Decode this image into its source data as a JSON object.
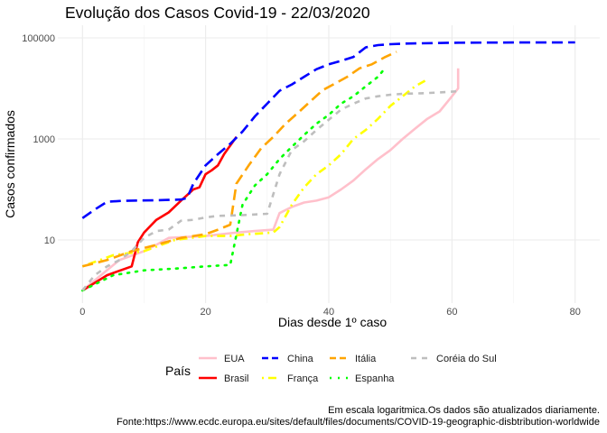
{
  "chart_data": {
    "type": "line",
    "title": "Evolução dos Casos Covid-19 -  22/03/2020",
    "xlabel": "Dias desde 1º caso",
    "ylabel": "Casos confirmados",
    "yscale": "log",
    "xlim": [
      -4,
      84
    ],
    "ylim_log10": [
      -0.25,
      5.25
    ],
    "x_ticks": [
      0,
      20,
      40,
      60,
      80
    ],
    "x_tick_labels": [
      "0",
      "20",
      "40",
      "60",
      "80"
    ],
    "y_ticks": [
      10,
      1000,
      100000
    ],
    "y_tick_labels": [
      "10",
      "1000",
      "100000"
    ],
    "grid": true,
    "legend": {
      "title": "País",
      "position": "bottom",
      "entries": [
        "EUA",
        "Brasil",
        "China",
        "França",
        "Itália",
        "Espanha",
        "Coréia do Sul"
      ]
    },
    "caption": [
      "Em escala logaritmica.Os dados são atualizados diariamente.",
      "Fonte:https://www.ecdc.europa.eu/sites/default/files/documents/COVID-19-geographic-disbtribution-worldwide"
    ],
    "series": [
      {
        "name": "EUA",
        "color": "#FFC0CB",
        "dash": "solid",
        "points": [
          [
            0,
            1
          ],
          [
            3,
            2
          ],
          [
            6,
            4
          ],
          [
            10,
            6
          ],
          [
            12,
            8
          ],
          [
            14,
            11
          ],
          [
            20,
            12
          ],
          [
            25,
            14
          ],
          [
            28,
            15
          ],
          [
            31,
            16
          ],
          [
            32,
            34
          ],
          [
            34,
            45
          ],
          [
            36,
            55
          ],
          [
            38,
            60
          ],
          [
            40,
            70
          ],
          [
            42,
            100
          ],
          [
            44,
            150
          ],
          [
            46,
            250
          ],
          [
            48,
            400
          ],
          [
            50,
            600
          ],
          [
            52,
            1000
          ],
          [
            54,
            1600
          ],
          [
            56,
            2500
          ],
          [
            58,
            3500
          ],
          [
            60,
            7000
          ],
          [
            61,
            10000
          ],
          [
            61,
            12000
          ],
          [
            61,
            25000
          ]
        ]
      },
      {
        "name": "Brasil",
        "color": "#FF0000",
        "dash": "solid",
        "points": [
          [
            0,
            1
          ],
          [
            4,
            2
          ],
          [
            8,
            3
          ],
          [
            9,
            9
          ],
          [
            10,
            14
          ],
          [
            12,
            25
          ],
          [
            14,
            35
          ],
          [
            16,
            60
          ],
          [
            18,
            100
          ],
          [
            19,
            110
          ],
          [
            20,
            200
          ],
          [
            21,
            240
          ],
          [
            22,
            300
          ],
          [
            23,
            500
          ],
          [
            25,
            1100
          ]
        ]
      },
      {
        "name": "China",
        "color": "#0000FF",
        "dash": "long",
        "points": [
          [
            0,
            27
          ],
          [
            2,
            40
          ],
          [
            4,
            57
          ],
          [
            6,
            59
          ],
          [
            8,
            60
          ],
          [
            12,
            61
          ],
          [
            14,
            62
          ],
          [
            16,
            63
          ],
          [
            17,
            68
          ],
          [
            18,
            129
          ],
          [
            20,
            300
          ],
          [
            22,
            500
          ],
          [
            24,
            800
          ],
          [
            26,
            1400
          ],
          [
            28,
            2800
          ],
          [
            30,
            5000
          ],
          [
            32,
            9000
          ],
          [
            34,
            12000
          ],
          [
            36,
            17000
          ],
          [
            38,
            24000
          ],
          [
            40,
            30000
          ],
          [
            42,
            35000
          ],
          [
            44,
            42000
          ],
          [
            46,
            65000
          ],
          [
            48,
            72000
          ],
          [
            50,
            75000
          ],
          [
            52,
            77000
          ],
          [
            55,
            78000
          ],
          [
            60,
            80000
          ],
          [
            70,
            81000
          ],
          [
            80,
            81500
          ]
        ]
      },
      {
        "name": "França",
        "color": "#FFFF00",
        "dash": "dotdash",
        "points": [
          [
            0,
            3
          ],
          [
            5,
            5
          ],
          [
            10,
            6
          ],
          [
            15,
            10
          ],
          [
            20,
            12
          ],
          [
            24,
            12
          ],
          [
            27,
            13
          ],
          [
            31,
            14
          ],
          [
            32,
            18
          ],
          [
            34,
            50
          ],
          [
            36,
            110
          ],
          [
            38,
            200
          ],
          [
            40,
            300
          ],
          [
            42,
            500
          ],
          [
            44,
            1000
          ],
          [
            46,
            1500
          ],
          [
            48,
            2500
          ],
          [
            50,
            4500
          ],
          [
            52,
            7000
          ],
          [
            54,
            11000
          ],
          [
            56,
            15000
          ]
        ]
      },
      {
        "name": "Itália",
        "color": "#FFA500",
        "dash": "long",
        "points": [
          [
            0,
            3
          ],
          [
            4,
            4
          ],
          [
            8,
            6
          ],
          [
            12,
            8
          ],
          [
            16,
            11
          ],
          [
            20,
            13
          ],
          [
            22,
            16
          ],
          [
            24,
            20
          ],
          [
            25,
            130
          ],
          [
            27,
            300
          ],
          [
            29,
            650
          ],
          [
            31,
            1100
          ],
          [
            33,
            2000
          ],
          [
            35,
            3300
          ],
          [
            37,
            5500
          ],
          [
            39,
            9200
          ],
          [
            41,
            12500
          ],
          [
            43,
            17000
          ],
          [
            45,
            25000
          ],
          [
            47,
            30000
          ],
          [
            49,
            41000
          ],
          [
            51,
            53000
          ]
        ]
      },
      {
        "name": "Espanha",
        "color": "#00FF00",
        "dash": "dotted",
        "points": [
          [
            0,
            1
          ],
          [
            5,
            2
          ],
          [
            10,
            2.5
          ],
          [
            15,
            2.7
          ],
          [
            20,
            3
          ],
          [
            24,
            3.2
          ],
          [
            26,
            50
          ],
          [
            28,
            120
          ],
          [
            30,
            200
          ],
          [
            32,
            400
          ],
          [
            34,
            700
          ],
          [
            36,
            1200
          ],
          [
            38,
            2000
          ],
          [
            40,
            3000
          ],
          [
            42,
            5000
          ],
          [
            44,
            7000
          ],
          [
            46,
            11000
          ],
          [
            48,
            17000
          ],
          [
            49,
            24000
          ]
        ]
      },
      {
        "name": "Coréia do Sul",
        "color": "#BEBEBE",
        "dash": "dashed",
        "points": [
          [
            0,
            1
          ],
          [
            2,
            2
          ],
          [
            4,
            3
          ],
          [
            6,
            4
          ],
          [
            8,
            6
          ],
          [
            10,
            11
          ],
          [
            12,
            15
          ],
          [
            14,
            16
          ],
          [
            16,
            24
          ],
          [
            18,
            25
          ],
          [
            20,
            28
          ],
          [
            22,
            30
          ],
          [
            26,
            31
          ],
          [
            30,
            33
          ],
          [
            32,
            200
          ],
          [
            34,
            600
          ],
          [
            36,
            900
          ],
          [
            38,
            1500
          ],
          [
            40,
            2400
          ],
          [
            42,
            3800
          ],
          [
            44,
            5000
          ],
          [
            46,
            6300
          ],
          [
            48,
            7000
          ],
          [
            50,
            7500
          ],
          [
            52,
            7800
          ],
          [
            55,
            8000
          ],
          [
            58,
            8300
          ],
          [
            61,
            8800
          ]
        ]
      }
    ]
  }
}
